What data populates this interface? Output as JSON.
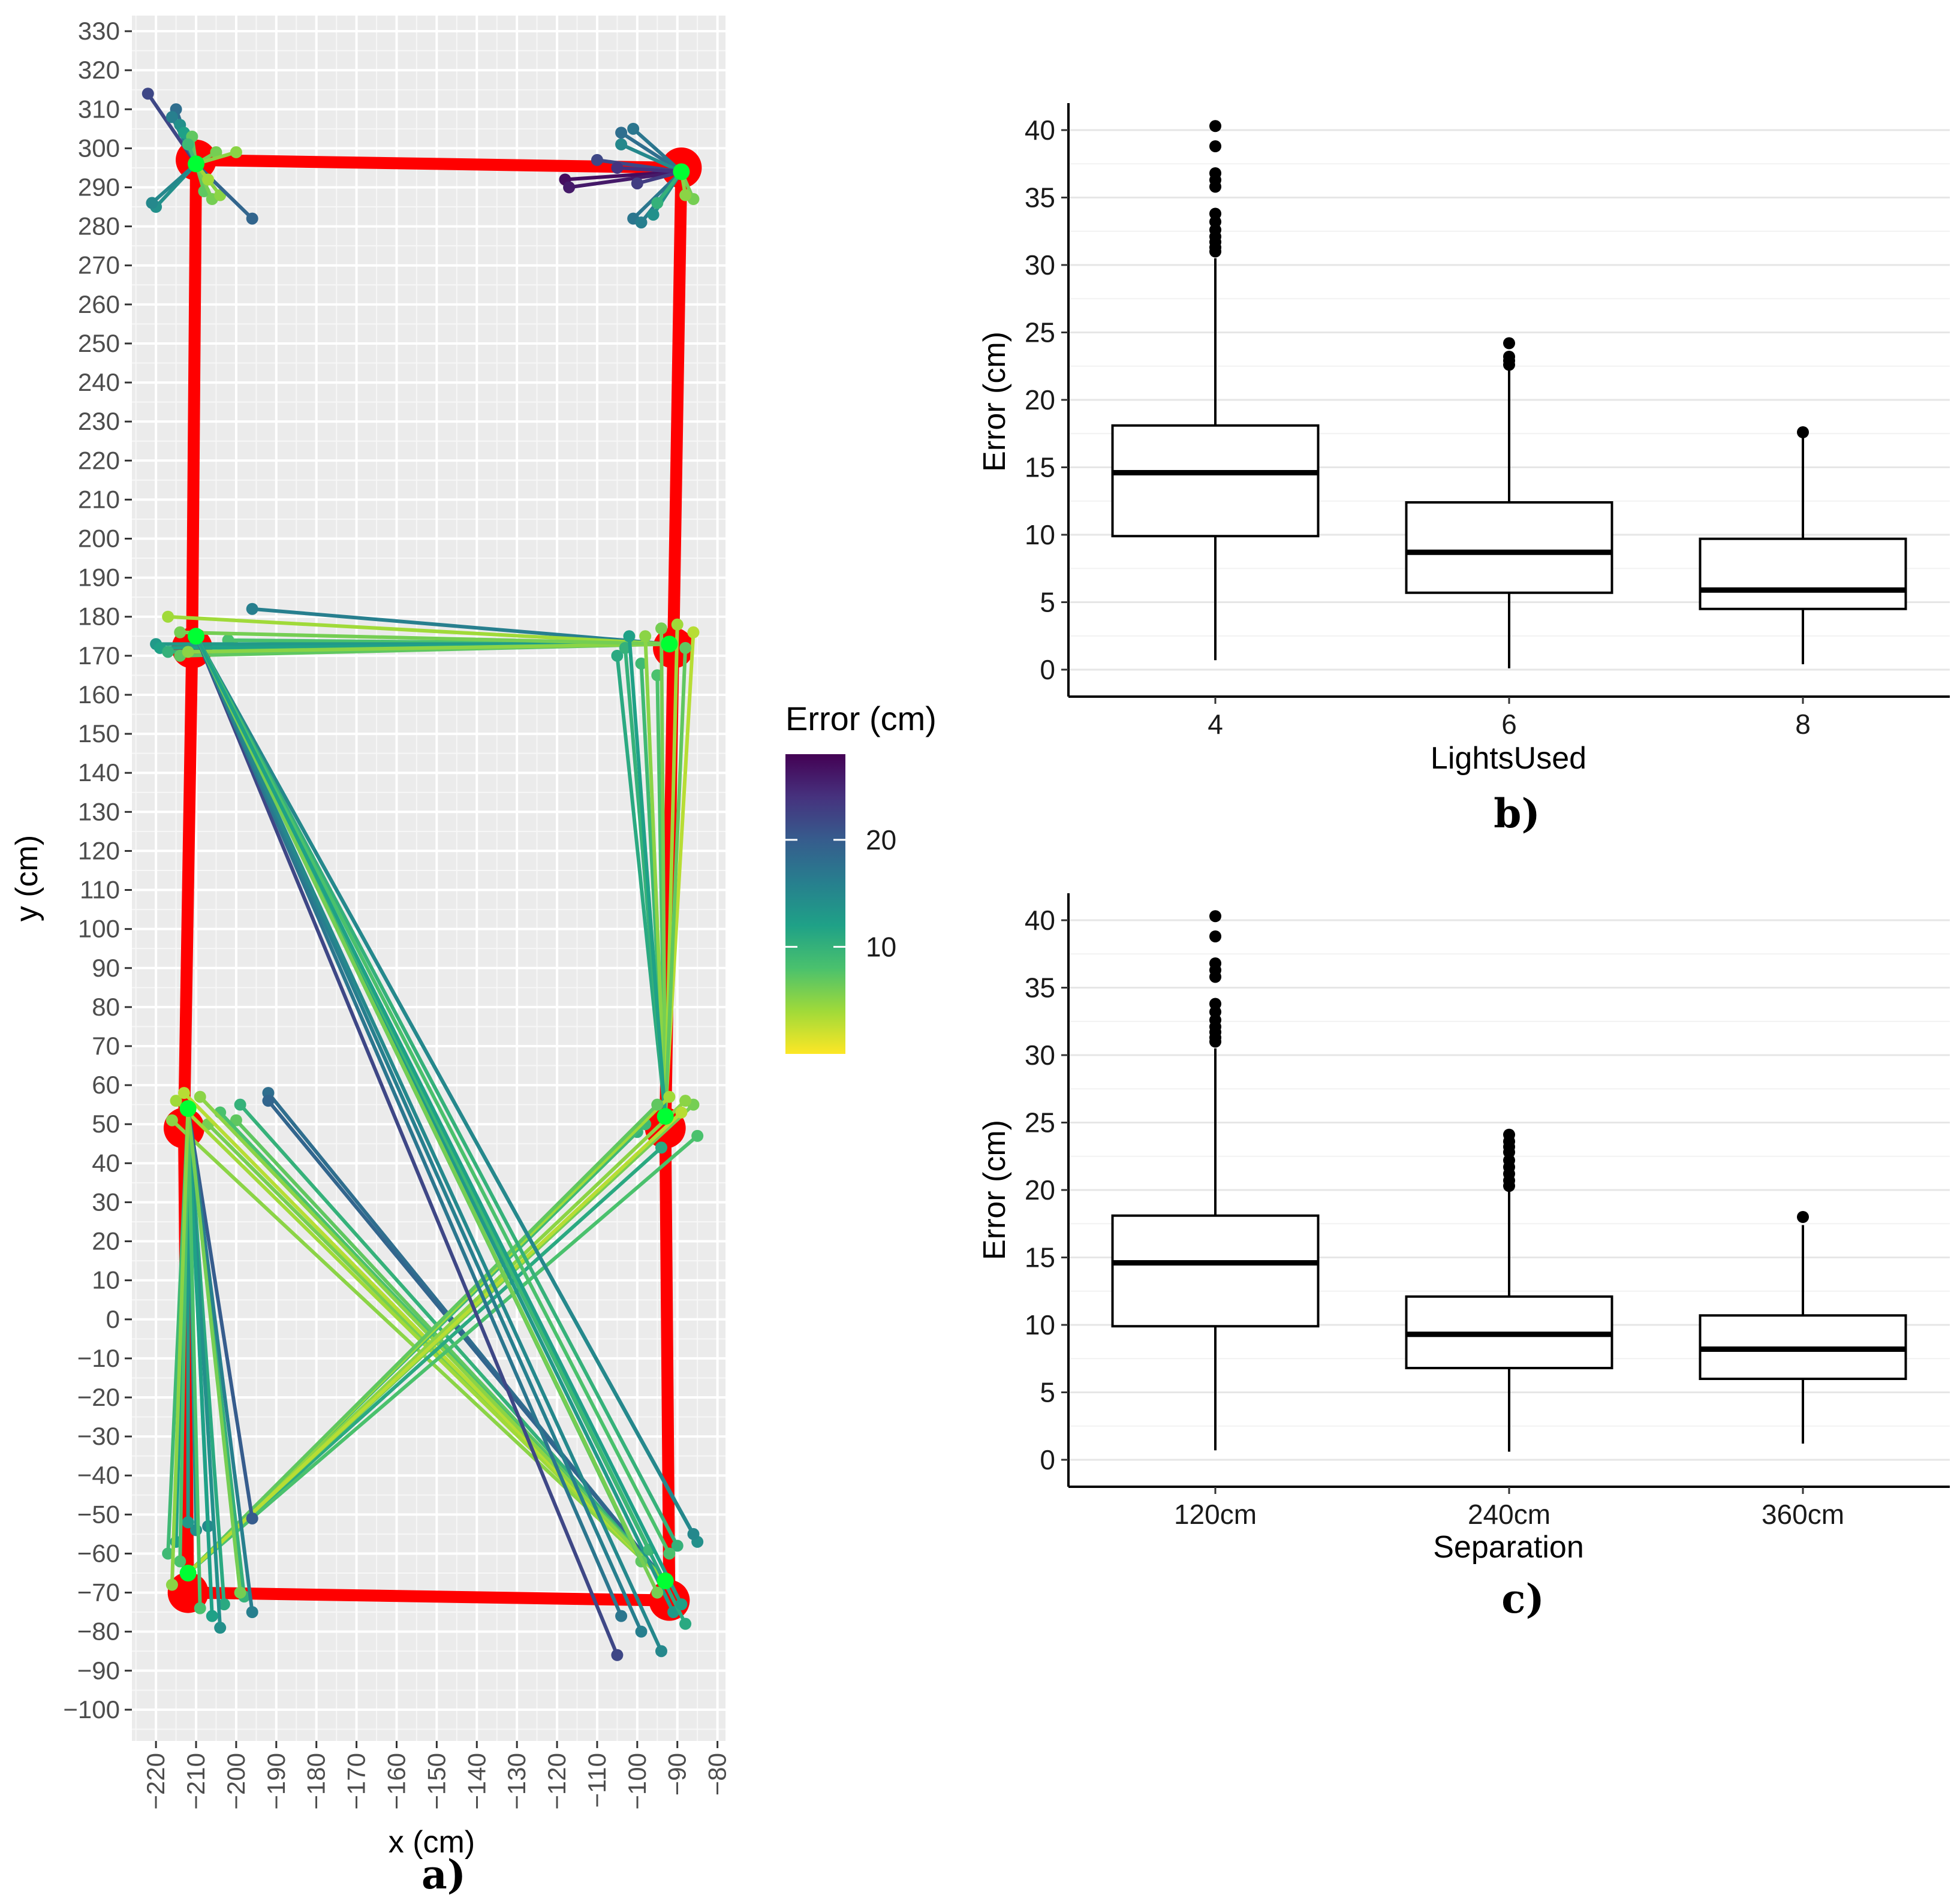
{
  "chart_data": [
    {
      "id": "a",
      "type": "scatter",
      "panel_label": "a)",
      "xlabel": "x (cm)",
      "ylabel": "y (cm)",
      "xlim": [
        -226,
        -78
      ],
      "ylim": [
        -108,
        334
      ],
      "x_ticks": [
        -220,
        -210,
        -200,
        -190,
        -180,
        -170,
        -160,
        -150,
        -140,
        -130,
        -120,
        -110,
        -100,
        -90,
        -80
      ],
      "y_ticks": [
        330,
        320,
        310,
        300,
        290,
        280,
        270,
        260,
        250,
        240,
        230,
        220,
        210,
        200,
        190,
        180,
        170,
        160,
        150,
        140,
        130,
        120,
        110,
        100,
        90,
        80,
        70,
        60,
        50,
        40,
        30,
        20,
        10,
        0,
        -10,
        -20,
        -30,
        -40,
        -50,
        -60,
        -70,
        -80,
        -90,
        -100
      ],
      "x_tick_labels": [
        "−220",
        "−210",
        "−200",
        "−190",
        "−180",
        "−170",
        "−160",
        "−150",
        "−140",
        "−130",
        "−120",
        "−110",
        "−100",
        "−90",
        "−80"
      ],
      "y_tick_labels": [
        "330",
        "320",
        "310",
        "300",
        "290",
        "280",
        "270",
        "260",
        "250",
        "240",
        "230",
        "220",
        "210",
        "200",
        "190",
        "180",
        "170",
        "160",
        "150",
        "140",
        "130",
        "120",
        "110",
        "100",
        "90",
        "80",
        "70",
        "60",
        "50",
        "40",
        "30",
        "20",
        "10",
        "0",
        "−10",
        "−20",
        "−30",
        "−40",
        "−50",
        "−60",
        "−70",
        "−80",
        "−90",
        "−100"
      ],
      "path_color": "#ff0000",
      "path": [
        [
          -210,
          297
        ],
        [
          -89,
          295
        ],
        [
          -91,
          172
        ],
        [
          -93,
          49
        ],
        [
          -92,
          -72
        ],
        [
          -212,
          -70
        ],
        [
          -213,
          49
        ],
        [
          -211,
          172
        ],
        [
          -210,
          297
        ]
      ],
      "anchor_color": "#00ff33",
      "anchors": [
        [
          -210,
          296
        ],
        [
          -89,
          294
        ],
        [
          -92,
          173
        ],
        [
          -93,
          52
        ],
        [
          -93,
          -67
        ],
        [
          -212,
          -65
        ],
        [
          -212,
          54
        ],
        [
          -210,
          175
        ]
      ],
      "estimates": [
        {
          "anchor": 0,
          "points": [
            [
              -222,
              314,
              22
            ],
            [
              -215,
              310,
              18
            ],
            [
              -216,
              308,
              16
            ],
            [
              -214,
              306,
              14
            ],
            [
              -213,
              304,
              12
            ],
            [
              -211,
              303,
              7
            ],
            [
              -212,
              301,
              9
            ],
            [
              -205,
              299,
              6
            ],
            [
              -200,
              299,
              5
            ],
            [
              -220,
              285,
              14
            ],
            [
              -221,
              286,
              15
            ],
            [
              -208,
              289,
              7
            ],
            [
              -206,
              287,
              6
            ],
            [
              -204,
              288,
              5
            ],
            [
              -196,
              282,
              19
            ],
            [
              -207,
              292,
              4
            ]
          ]
        },
        {
          "anchor": 1,
          "points": [
            [
              -104,
              304,
              18
            ],
            [
              -101,
              305,
              17
            ],
            [
              -104,
              301,
              15
            ],
            [
              -110,
              297,
              22
            ],
            [
              -118,
              292,
              27
            ],
            [
              -117,
              290,
              26
            ],
            [
              -100,
              291,
              23
            ],
            [
              -101,
              282,
              17
            ],
            [
              -99,
              281,
              16
            ],
            [
              -96,
              283,
              14
            ],
            [
              -86,
              287,
              6
            ],
            [
              -88,
              288,
              5
            ],
            [
              -95,
              286,
              10
            ],
            [
              -105,
              295,
              24
            ]
          ]
        },
        {
          "anchor": 2,
          "points": [
            [
              -196,
              182,
              16
            ],
            [
              -201,
              173,
              6
            ],
            [
              -202,
              174,
              8
            ],
            [
              -217,
              180,
              4
            ],
            [
              -220,
              173,
              13
            ],
            [
              -219,
              172,
              12
            ],
            [
              -217,
              171,
              10
            ],
            [
              -214,
              170,
              7
            ],
            [
              -212,
              171,
              5
            ],
            [
              -214,
              176,
              6
            ]
          ]
        },
        {
          "anchor": 3,
          "points": [
            [
              -105,
              170,
              11
            ],
            [
              -103,
              172,
              10
            ],
            [
              -99,
              168,
              9
            ],
            [
              -95,
              165,
              8
            ],
            [
              -98,
              175,
              5
            ],
            [
              -94,
              177,
              6
            ],
            [
              -90,
              178,
              4
            ],
            [
              -86,
              176,
              3
            ],
            [
              -88,
              172,
              7
            ],
            [
              -102,
              175,
              12
            ]
          ]
        },
        {
          "anchor": 4,
          "points": [
            [
              -192,
              58,
              18
            ],
            [
              -192,
              56,
              19
            ],
            [
              -199,
              55,
              10
            ],
            [
              -200,
              51,
              7
            ],
            [
              -207,
              50,
              6
            ],
            [
              -216,
              51,
              5
            ],
            [
              -215,
              56,
              4
            ],
            [
              -213,
              58,
              3
            ],
            [
              -204,
              53,
              8
            ],
            [
              -209,
              57,
              5
            ]
          ]
        },
        {
          "anchor": 5,
          "points": [
            [
              -100,
              48,
              10
            ],
            [
              -98,
              50,
              9
            ],
            [
              -94,
              44,
              11
            ],
            [
              -85,
              47,
              8
            ],
            [
              -86,
              55,
              6
            ],
            [
              -88,
              56,
              5
            ],
            [
              -92,
              57,
              4
            ],
            [
              -95,
              55,
              7
            ],
            [
              -89,
              53,
              3
            ]
          ]
        },
        {
          "anchor": 6,
          "points": [
            [
              -196,
              -51,
              20
            ],
            [
              -207,
              -53,
              15
            ],
            [
              -210,
              -54,
              14
            ],
            [
              -212,
              -52,
              13
            ],
            [
              -215,
              -57,
              12
            ],
            [
              -217,
              -60,
              9
            ],
            [
              -214,
              -62,
              8
            ],
            [
              -203,
              -73,
              11
            ],
            [
              -198,
              -71,
              10
            ],
            [
              -196,
              -75,
              16
            ],
            [
              -204,
              -79,
              14
            ],
            [
              -206,
              -76,
              12
            ],
            [
              -209,
              -74,
              8
            ],
            [
              -199,
              -70,
              6
            ],
            [
              -216,
              -68,
              5
            ]
          ]
        },
        {
          "anchor": 7,
          "points": [
            [
              -105,
              -86,
              22
            ],
            [
              -104,
              -76,
              17
            ],
            [
              -99,
              -80,
              16
            ],
            [
              -94,
              -85,
              15
            ],
            [
              -91,
              -75,
              13
            ],
            [
              -88,
              -78,
              11
            ],
            [
              -85,
              -57,
              14
            ],
            [
              -86,
              -55,
              15
            ],
            [
              -90,
              -58,
              10
            ],
            [
              -97,
              -59,
              9
            ],
            [
              -99,
              -62,
              7
            ],
            [
              -95,
              -70,
              6
            ],
            [
              -92,
              -60,
              8
            ],
            [
              -89,
              -73,
              12
            ]
          ]
        }
      ],
      "legend": {
        "title": "Error (cm)",
        "colormap": "viridis (reversed)",
        "range": [
          0,
          28
        ],
        "ticks": [
          10,
          20
        ],
        "tick_labels": [
          "10",
          "20"
        ],
        "colors": [
          "#fde725",
          "#a0da39",
          "#4ac16d",
          "#1fa187",
          "#277f8e",
          "#365c8d",
          "#46327e",
          "#440154"
        ]
      },
      "marker_colors": {
        "dark": "#440154",
        "c22": "#3b528b",
        "c17": "#2c728e",
        "c12": "#21908d",
        "c8": "#27ad81",
        "c5": "#5dc963",
        "c3": "#aadc32"
      }
    },
    {
      "id": "b",
      "type": "box",
      "panel_label": "b)",
      "xlabel": "LightsUsed",
      "ylabel": "Error (cm)",
      "ylim": [
        -2,
        42
      ],
      "y_ticks": [
        0,
        5,
        10,
        15,
        20,
        25,
        30,
        35,
        40
      ],
      "categories": [
        "4",
        "6",
        "8"
      ],
      "boxes": [
        {
          "category": "4",
          "min": 0.7,
          "q1": 9.9,
          "median": 14.6,
          "q3": 18.1,
          "max": 30.5,
          "outliers": [
            31.0,
            31.3,
            31.7,
            32.1,
            32.6,
            33.2,
            33.8,
            35.8,
            36.3,
            36.8,
            38.8,
            40.3
          ]
        },
        {
          "category": "6",
          "min": 0.1,
          "q1": 5.7,
          "median": 8.7,
          "q3": 12.4,
          "max": 22.2,
          "outliers": [
            22.6,
            22.9,
            23.2,
            24.2
          ]
        },
        {
          "category": "8",
          "min": 0.4,
          "q1": 4.5,
          "median": 5.9,
          "q3": 9.7,
          "max": 17.2,
          "outliers": [
            17.6
          ]
        }
      ]
    },
    {
      "id": "c",
      "type": "box",
      "panel_label": "c)",
      "xlabel": "Separation",
      "ylabel": "Error (cm)",
      "ylim": [
        -2,
        42
      ],
      "y_ticks": [
        0,
        5,
        10,
        15,
        20,
        25,
        30,
        35,
        40
      ],
      "categories": [
        "120cm",
        "240cm",
        "360cm"
      ],
      "boxes": [
        {
          "category": "120cm",
          "min": 0.7,
          "q1": 9.9,
          "median": 14.6,
          "q3": 18.1,
          "max": 30.5,
          "outliers": [
            31.0,
            31.3,
            31.7,
            32.1,
            32.6,
            33.2,
            33.8,
            35.8,
            36.3,
            36.8,
            38.8,
            40.3
          ]
        },
        {
          "category": "240cm",
          "min": 0.6,
          "q1": 6.8,
          "median": 9.3,
          "q3": 12.1,
          "max": 19.9,
          "outliers": [
            20.3,
            20.7,
            21.2,
            21.7,
            22.2,
            22.8,
            23.2,
            23.6,
            24.1
          ]
        },
        {
          "category": "360cm",
          "min": 1.2,
          "q1": 6.0,
          "median": 8.2,
          "q3": 10.7,
          "max": 17.4,
          "outliers": [
            18.0
          ]
        }
      ]
    }
  ]
}
